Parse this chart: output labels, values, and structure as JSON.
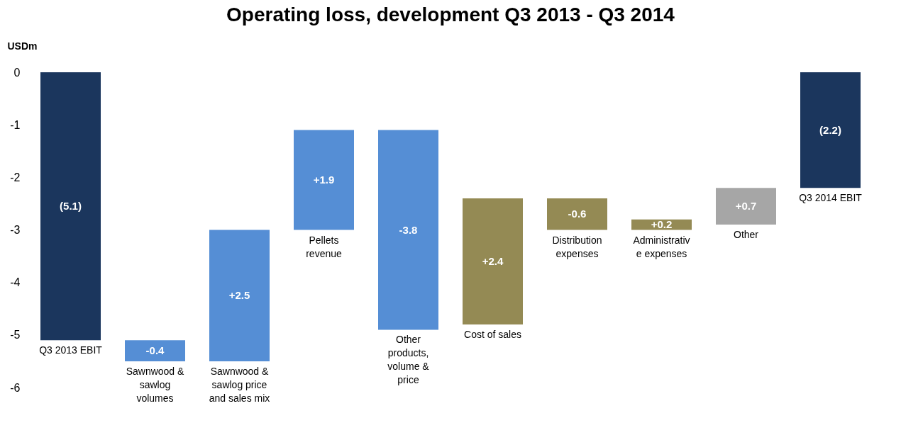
{
  "chart_data": {
    "type": "bar",
    "title": "Operating loss, development Q3 2013 - Q3 2014",
    "ylabel": "USDm",
    "categories": [
      "Q3 2013 EBIT",
      "Sawnwood & sawlog volumes",
      "Sawnwood & sawlog price and sales mix",
      "Pellets revenue",
      "Other products, volume & price",
      "Cost of sales",
      "Distribution expenses",
      "Administrative expenses",
      "Other",
      "Q3 2014 EBIT"
    ],
    "values": [
      -5.1,
      -0.4,
      2.5,
      1.9,
      -3.8,
      2.4,
      -0.6,
      0.2,
      0.7,
      -2.2
    ],
    "base": [
      0,
      -5.1,
      -5.5,
      -3.0,
      -1.1,
      -4.8,
      -2.4,
      -3.0,
      -2.9,
      0
    ],
    "colors": [
      "#1b365d",
      "#558ed5",
      "#558ed5",
      "#558ed5",
      "#558ed5",
      "#948a54",
      "#948a54",
      "#948a54",
      "#a6a6a6",
      "#1b365d"
    ],
    "value_labels": [
      "(5.1)",
      "-0.4",
      "+2.5",
      "+1.9",
      "-3.8",
      "+2.4",
      "-0.6",
      "+0.2",
      "+0.7",
      "(2.2)"
    ],
    "ylim": [
      -6,
      0
    ],
    "yticks": [
      0,
      -1,
      -2,
      -3,
      -4,
      -5,
      -6
    ],
    "grid": false
  }
}
